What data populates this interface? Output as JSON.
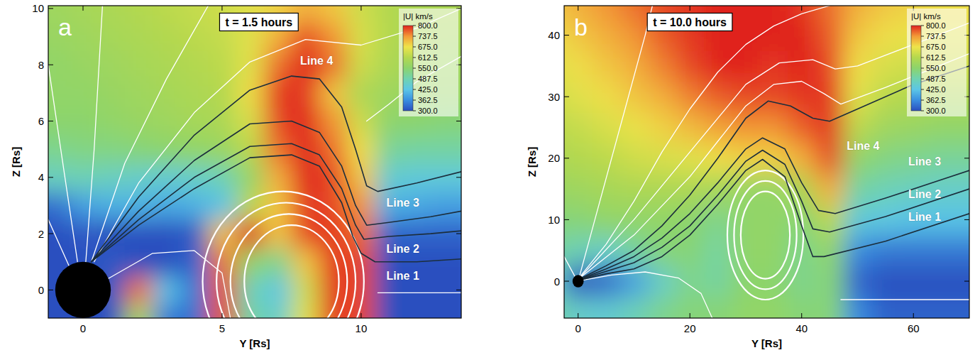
{
  "chart_data": [
    {
      "type": "heatmap",
      "letter": "a",
      "title": "t = 1.5 hours",
      "x_label": "Y [Rs]",
      "y_label": "Z [Rs]",
      "xlim": [
        -1.25,
        13.6
      ],
      "ylim": [
        -1,
        10.1
      ],
      "xticks": [
        0,
        5,
        10
      ],
      "yticks": [
        0,
        2,
        4,
        6,
        8,
        10
      ],
      "colorbar": {
        "title": "|U| km/s",
        "range": [
          300,
          800
        ],
        "ticks": [
          {
            "value": 300,
            "label": "300.0"
          },
          362.5,
          {
            "value": 425,
            "label": "425.0"
          },
          487.5,
          {
            "value": 550,
            "label": "550.0"
          },
          612.5,
          {
            "value": 675,
            "label": "675.0"
          },
          737.5,
          {
            "value": 800,
            "label": "800.0"
          }
        ]
      },
      "cells": {
        "x": [
          -1,
          0,
          1,
          2,
          3,
          4,
          5,
          6,
          7,
          8,
          9,
          10,
          11,
          12,
          13
        ],
        "y": [
          -1,
          0,
          1,
          2,
          3,
          4,
          5,
          6,
          7,
          8,
          9,
          10
        ],
        "values": [
          [
            300,
            300,
            300,
            600,
            340,
            330,
            780,
            500,
            460,
            660,
            790,
            780,
            300,
            300,
            300
          ],
          [
            300,
            300,
            310,
            760,
            420,
            340,
            780,
            480,
            430,
            640,
            790,
            780,
            300,
            300,
            300
          ],
          [
            300,
            300,
            310,
            300,
            300,
            320,
            760,
            560,
            520,
            700,
            790,
            780,
            300,
            300,
            300
          ],
          [
            300,
            310,
            300,
            300,
            300,
            310,
            700,
            800,
            700,
            780,
            790,
            760,
            320,
            320,
            320
          ],
          [
            330,
            380,
            400,
            400,
            390,
            400,
            420,
            620,
            700,
            790,
            780,
            740,
            400,
            390,
            380
          ],
          [
            470,
            480,
            470,
            460,
            450,
            460,
            480,
            560,
            720,
            800,
            780,
            700,
            450,
            440,
            440
          ],
          [
            520,
            530,
            530,
            540,
            550,
            560,
            570,
            620,
            760,
            800,
            760,
            680,
            510,
            500,
            500
          ],
          [
            550,
            550,
            560,
            570,
            580,
            590,
            600,
            650,
            780,
            800,
            740,
            640,
            550,
            550,
            540
          ],
          [
            560,
            560,
            570,
            580,
            590,
            600,
            610,
            680,
            790,
            790,
            700,
            600,
            580,
            570,
            570
          ],
          [
            560,
            570,
            580,
            590,
            600,
            610,
            620,
            660,
            760,
            800,
            760,
            640,
            600,
            590,
            580
          ],
          [
            570,
            580,
            590,
            600,
            610,
            620,
            630,
            660,
            720,
            780,
            740,
            650,
            610,
            600,
            590
          ],
          [
            580,
            590,
            600,
            610,
            620,
            630,
            640,
            660,
            690,
            720,
            700,
            640,
            610,
            600,
            600
          ]
        ]
      },
      "sun": {
        "x": 0,
        "y": 0,
        "r": 1
      },
      "loops": [
        {
          "cx": 7.2,
          "cy": 0.3,
          "rx": 2.9,
          "ry": 3.2
        },
        {
          "cx": 7.3,
          "cy": 0.3,
          "rx": 2.5,
          "ry": 2.8
        },
        {
          "cx": 7.4,
          "cy": 0.3,
          "rx": 2.1,
          "ry": 2.4
        },
        {
          "cx": 7.5,
          "cy": 0.3,
          "rx": 1.7,
          "ry": 2.0
        }
      ],
      "series": [
        {
          "color": "#ffffff",
          "x": [
            0.4,
            2,
            4,
            6,
            8,
            10,
            12,
            13.6
          ],
          "values": [
            1.0,
            3.8,
            6.3,
            8.1,
            8.9,
            8.7,
            9.3,
            10.0
          ]
        },
        {
          "color": "#ffffff",
          "x": [
            0.3,
            1.5,
            3,
            4.5
          ],
          "values": [
            1.0,
            4.5,
            7.5,
            10.1
          ]
        },
        {
          "color": "#ffffff",
          "x": [
            0.1,
            0.4,
            0.7
          ],
          "values": [
            1.0,
            5,
            10.1
          ]
        },
        {
          "color": "#ffffff",
          "x": [
            -0.2,
            -0.8,
            -1.25
          ],
          "values": [
            1.0,
            5,
            8
          ]
        },
        {
          "color": "#ffffff",
          "x": [
            -0.5,
            -1.25
          ],
          "values": [
            0.85,
            2.5
          ]
        },
        {
          "color": "#ffffff",
          "x": [
            0.9,
            2.5,
            4,
            5,
            5.3
          ],
          "values": [
            0.4,
            1.3,
            1.4,
            0.6,
            -1
          ]
        },
        {
          "color": "#ffffff",
          "x": [
            13.6,
            10.6
          ],
          "values": [
            -0.1,
            -0.1
          ]
        },
        {
          "color": "#ffffff",
          "x": [
            10.2,
            11,
            12,
            13.6
          ],
          "values": [
            6.0,
            6.6,
            7.4,
            8.3
          ]
        },
        {
          "color": "#1c2e3c",
          "x": [
            0.3,
            2,
            4,
            6,
            7.5,
            8.5,
            9.3,
            9.7,
            10,
            10.5,
            12,
            13.6
          ],
          "values": [
            1.0,
            2.3,
            3.6,
            4.7,
            4.8,
            4.4,
            3.1,
            1.9,
            1.3,
            1.0,
            1.0,
            1.1
          ]
        },
        {
          "color": "#1c2e3c",
          "x": [
            0.3,
            2,
            4,
            6,
            7.5,
            8.5,
            9.3,
            9.8,
            10.1,
            11,
            12.5,
            13.6
          ],
          "values": [
            1.0,
            2.5,
            4.0,
            5.1,
            5.2,
            4.8,
            3.6,
            2.3,
            1.8,
            1.9,
            2.0,
            2.1
          ]
        },
        {
          "color": "#1c2e3c",
          "x": [
            0.3,
            2,
            4,
            6,
            7.5,
            8.5,
            9.3,
            9.8,
            10.2,
            11,
            12.5,
            13.6
          ],
          "values": [
            1.0,
            2.8,
            4.6,
            5.9,
            6.0,
            5.6,
            4.4,
            3.0,
            2.3,
            2.4,
            2.6,
            2.8
          ]
        },
        {
          "color": "#1c2e3c",
          "x": [
            0.3,
            2,
            4,
            6,
            7.5,
            8.5,
            9.3,
            9.8,
            10.2,
            10.6,
            12,
            13.6
          ],
          "values": [
            1.0,
            3.3,
            5.5,
            7.1,
            7.6,
            7.5,
            6.5,
            5.0,
            3.7,
            3.5,
            3.8,
            4.2
          ]
        }
      ],
      "annotations": [
        {
          "text": "Line 4",
          "x": 8.4,
          "y": 8.15
        },
        {
          "text": "Line 3",
          "x": 11.5,
          "y": 3.1
        },
        {
          "text": "Line 2",
          "x": 11.5,
          "y": 1.45
        },
        {
          "text": "Line 1",
          "x": 11.5,
          "y": 0.5
        }
      ]
    },
    {
      "type": "heatmap",
      "letter": "b",
      "title": "t = 10.0 hours",
      "x_label": "Y [Rs]",
      "y_label": "Z [Rs]",
      "xlim": [
        -2.5,
        70
      ],
      "ylim": [
        -6,
        44.8
      ],
      "xticks": [
        0,
        20,
        40,
        60
      ],
      "yticks": [
        0,
        10,
        20,
        30,
        40
      ],
      "colorbar": {
        "title": "|U| km/s",
        "range": [
          300,
          800
        ],
        "ticks": [
          {
            "value": 300,
            "label": "300.0"
          },
          362.5,
          {
            "value": 425,
            "label": "425.0"
          },
          487.5,
          {
            "value": 550,
            "label": "550.0"
          },
          612.5,
          {
            "value": 675,
            "label": "675.0"
          },
          737.5,
          {
            "value": 800,
            "label": "800.0"
          }
        ]
      },
      "cells": {
        "x": [
          -5,
          0,
          5,
          10,
          15,
          20,
          25,
          30,
          35,
          40,
          45,
          50,
          55,
          60,
          65,
          70
        ],
        "y": [
          -5,
          0,
          5,
          10,
          15,
          20,
          25,
          30,
          35,
          40,
          45
        ],
        "values": [
          [
            500,
            460,
            450,
            480,
            520,
            540,
            540,
            560,
            560,
            540,
            540,
            360,
            320,
            320,
            320,
            320
          ],
          [
            460,
            300,
            320,
            380,
            460,
            520,
            500,
            550,
            550,
            520,
            540,
            320,
            300,
            300,
            300,
            300
          ],
          [
            500,
            480,
            460,
            500,
            540,
            540,
            500,
            560,
            560,
            520,
            560,
            360,
            340,
            340,
            340,
            340
          ],
          [
            540,
            540,
            560,
            560,
            560,
            550,
            520,
            560,
            560,
            540,
            620,
            440,
            430,
            420,
            420,
            420
          ],
          [
            570,
            580,
            590,
            600,
            600,
            600,
            590,
            560,
            560,
            600,
            720,
            500,
            480,
            470,
            460,
            460
          ],
          [
            600,
            610,
            620,
            640,
            650,
            660,
            680,
            690,
            690,
            720,
            780,
            560,
            530,
            520,
            510,
            510
          ],
          [
            620,
            630,
            650,
            670,
            690,
            710,
            730,
            740,
            740,
            770,
            790,
            620,
            580,
            570,
            560,
            560
          ],
          [
            640,
            660,
            680,
            700,
            720,
            750,
            770,
            780,
            780,
            790,
            790,
            660,
            620,
            610,
            600,
            600
          ],
          [
            660,
            680,
            700,
            720,
            750,
            780,
            800,
            800,
            790,
            800,
            780,
            680,
            650,
            640,
            640,
            640
          ],
          [
            680,
            700,
            720,
            740,
            770,
            790,
            800,
            800,
            800,
            800,
            770,
            700,
            680,
            670,
            660,
            660
          ],
          [
            700,
            720,
            740,
            760,
            780,
            790,
            800,
            800,
            800,
            790,
            760,
            720,
            700,
            690,
            680,
            680
          ]
        ]
      },
      "sun": {
        "x": 0,
        "y": 0,
        "r": 1
      },
      "loops": [
        {
          "cx": 33.5,
          "cy": 7.5,
          "rx": 6.8,
          "ry": 10.5
        },
        {
          "cx": 33.5,
          "cy": 7.5,
          "rx": 5.6,
          "ry": 8.8
        },
        {
          "cx": 33.5,
          "cy": 7.5,
          "rx": 4.4,
          "ry": 7.1
        }
      ],
      "series": [
        {
          "color": "#ffffff",
          "x": [
            0.5,
            5,
            10,
            15,
            20,
            25,
            30,
            35,
            40,
            45
          ],
          "values": [
            0.9,
            6,
            13,
            21,
            28,
            34,
            38.5,
            41.5,
            43.5,
            44.8
          ]
        },
        {
          "color": "#ffffff",
          "x": [
            0.3,
            3,
            6,
            9,
            12,
            13.3
          ],
          "values": [
            1,
            10,
            20,
            30,
            40,
            44.8
          ]
        },
        {
          "color": "#ffffff",
          "x": [
            0.7,
            10,
            20,
            30,
            35,
            40,
            44,
            47,
            55,
            70
          ],
          "values": [
            0.8,
            7.5,
            17,
            28.5,
            32,
            32.5,
            30.5,
            28.8,
            31.5,
            37
          ]
        },
        {
          "color": "#ffffff",
          "x": [
            0.6,
            10,
            20,
            30,
            36,
            42,
            46,
            50,
            60,
            70
          ],
          "values": [
            0.85,
            10,
            21,
            32,
            35.5,
            36,
            34.5,
            35,
            38.5,
            42
          ]
        },
        {
          "color": "#ffffff",
          "x": [
            1,
            6,
            12,
            18,
            22,
            24
          ],
          "values": [
            0.2,
            1,
            1.5,
            0.5,
            -2,
            -6
          ]
        },
        {
          "color": "#ffffff",
          "x": [
            -0.6,
            -2.5
          ],
          "values": [
            0.8,
            4
          ]
        },
        {
          "color": "#ffffff",
          "x": [
            70,
            47
          ],
          "values": [
            -3,
            -3
          ]
        },
        {
          "color": "#1c2e3c",
          "x": [
            0.8,
            5,
            10,
            15,
            20,
            25,
            30,
            33,
            37,
            40,
            42,
            44,
            55,
            70
          ],
          "values": [
            0.3,
            1.2,
            2,
            4,
            7.5,
            12.5,
            18,
            19.8,
            17,
            9,
            4,
            4,
            6.5,
            11
          ]
        },
        {
          "color": "#1c2e3c",
          "x": [
            0.8,
            5,
            10,
            15,
            20,
            25,
            30,
            33,
            37,
            40,
            42,
            45,
            55,
            70
          ],
          "values": [
            0.4,
            1.6,
            3,
            5.5,
            9,
            14,
            19.5,
            21.3,
            19,
            13,
            8.5,
            8,
            10.5,
            15
          ]
        },
        {
          "color": "#1c2e3c",
          "x": [
            0.8,
            5,
            10,
            15,
            20,
            25,
            30,
            33,
            37,
            40,
            43,
            46,
            55,
            70
          ],
          "values": [
            0.5,
            2,
            4,
            7,
            11,
            16,
            21.5,
            23.3,
            21.5,
            16,
            11.5,
            11,
            13.5,
            18
          ]
        },
        {
          "color": "#1c2e3c",
          "x": [
            0.8,
            5,
            10,
            15,
            20,
            25,
            30,
            34,
            38,
            42,
            45,
            50,
            60,
            70
          ],
          "values": [
            0.6,
            2.5,
            5,
            9,
            14,
            20,
            26.5,
            29.3,
            28.5,
            26.5,
            26,
            28,
            32,
            35
          ]
        }
      ],
      "annotations": [
        {
          "text": "Line 4",
          "x": 51,
          "y": 22
        },
        {
          "text": "Line 3",
          "x": 62,
          "y": 19.5
        },
        {
          "text": "Line 2",
          "x": 62,
          "y": 14.2
        },
        {
          "text": "Line 1",
          "x": 62,
          "y": 10.4
        }
      ]
    }
  ]
}
